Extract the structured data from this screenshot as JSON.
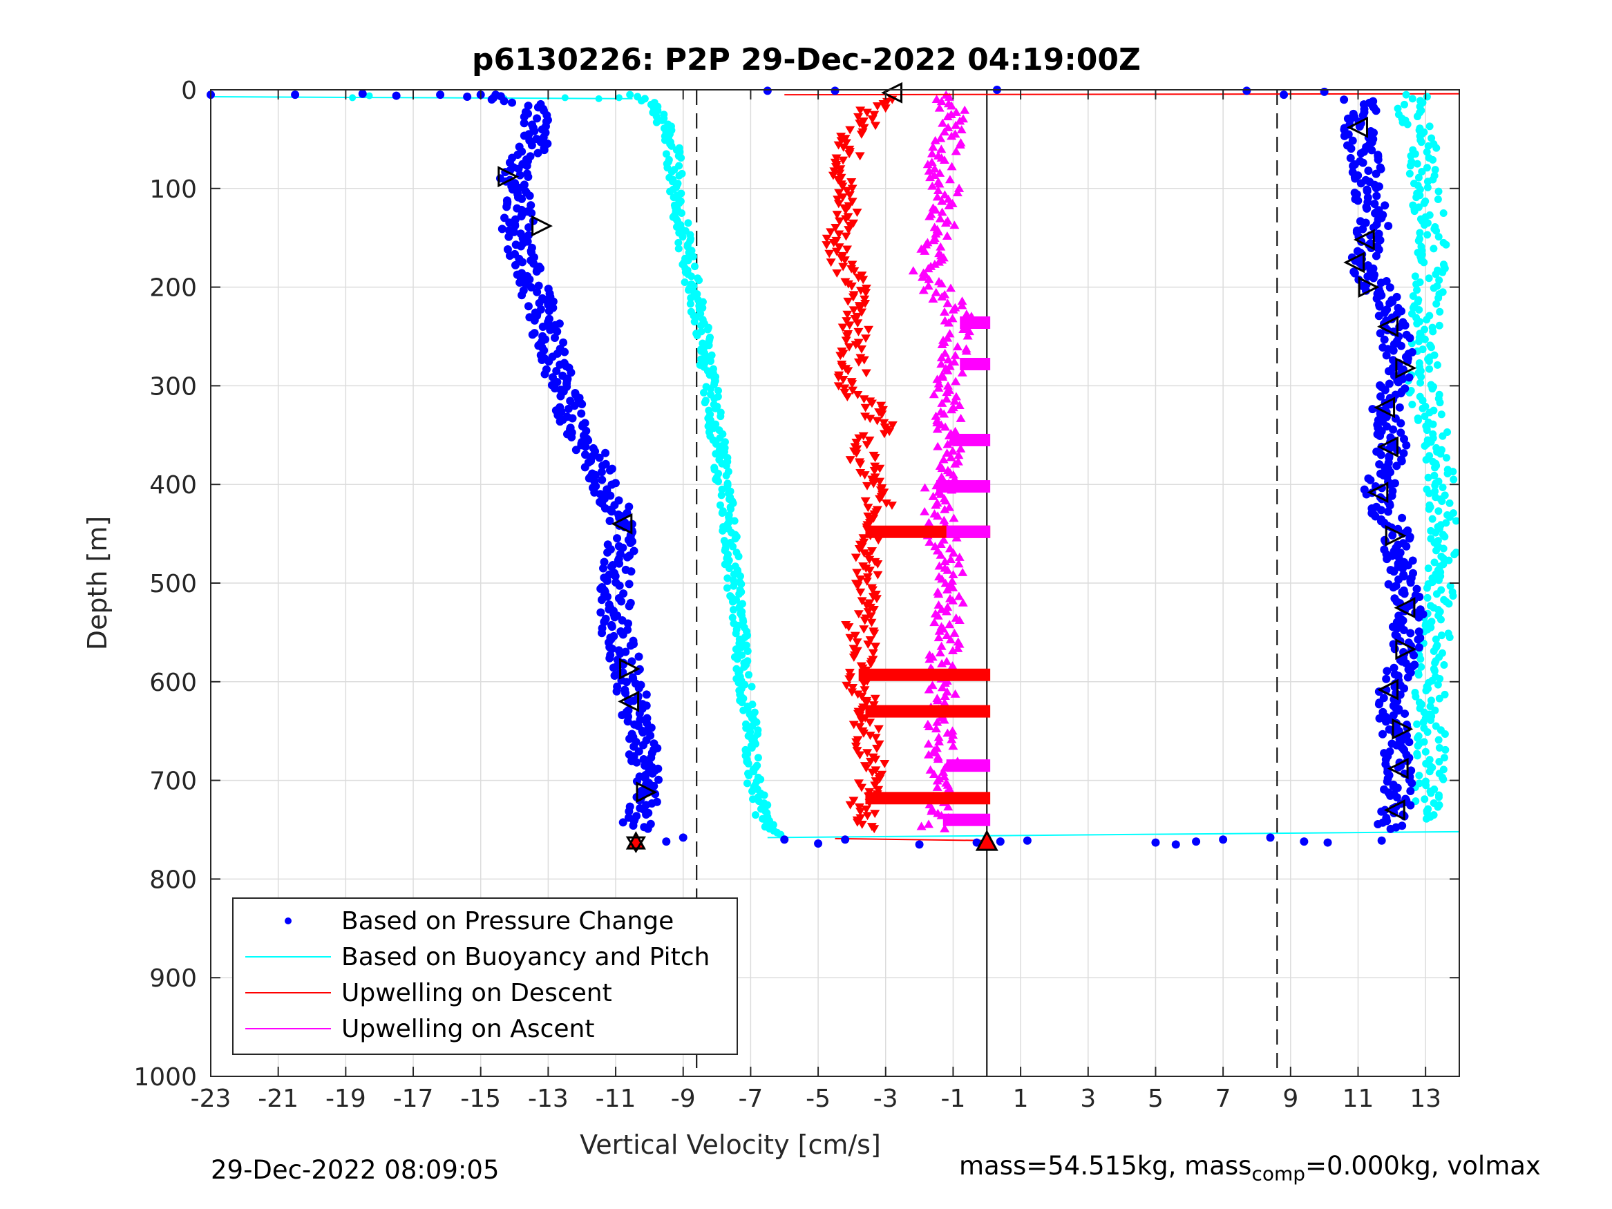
{
  "chart_data": {
    "type": "scatter",
    "title": "p6130226: P2P 29-Dec-2022 04:19:00Z",
    "xlabel": "Vertical Velocity [cm/s]",
    "ylabel": "Depth [m]",
    "xlim": [
      -23,
      14
    ],
    "ylim": [
      0,
      1000
    ],
    "y_reversed": true,
    "grid": true,
    "legend_position": "bottom-left",
    "x_ticks": [
      -23,
      -21,
      -19,
      -17,
      -15,
      -13,
      -11,
      -9,
      -7,
      -5,
      -3,
      -1,
      1,
      3,
      5,
      7,
      9,
      11,
      13
    ],
    "y_ticks": [
      0,
      100,
      200,
      300,
      400,
      500,
      600,
      700,
      800,
      900,
      1000
    ],
    "reference_lines": [
      {
        "x": -8.6,
        "style": "dashed"
      },
      {
        "x": 0,
        "style": "solid"
      },
      {
        "x": 8.6,
        "style": "dashed"
      }
    ],
    "colors": {
      "pressure": "#0000ff",
      "buoyancy": "#00ffff",
      "descent": "#ff0000",
      "ascent": "#ff00ff",
      "axis": "#262626",
      "grid": "#dcdcdc"
    },
    "legend": [
      {
        "label": "Based on Pressure Change",
        "marker": "dot",
        "color": "#0000ff"
      },
      {
        "label": "Based on Buoyancy and Pitch",
        "marker": "line",
        "color": "#00ffff"
      },
      {
        "label": "Upwelling on Descent",
        "marker": "line",
        "color": "#ff0000"
      },
      {
        "label": "Upwelling on Ascent",
        "marker": "line",
        "color": "#ff00ff"
      }
    ],
    "series": [
      {
        "name": "Based on Pressure Change",
        "key": "pressure_descent",
        "depth": [
          5,
          10,
          15,
          25,
          40,
          60,
          90,
          120,
          150,
          200,
          250,
          300,
          330,
          350,
          400,
          440,
          460,
          500,
          550,
          590,
          620,
          650,
          680,
          710,
          740,
          750
        ],
        "velocity": [
          -14.8,
          -14.2,
          -13.5,
          -13.3,
          -13.3,
          -13.5,
          -14.0,
          -13.8,
          -14.0,
          -13.4,
          -13.0,
          -12.6,
          -12.3,
          -12.0,
          -11.3,
          -10.8,
          -10.8,
          -11.0,
          -11.0,
          -10.6,
          -10.5,
          -10.2,
          -10.2,
          -10.1,
          -10.3,
          -10.5
        ]
      },
      {
        "name": "Based on Pressure Change",
        "key": "pressure_ascent",
        "depth": [
          10,
          20,
          40,
          60,
          80,
          100,
          130,
          160,
          180,
          200,
          240,
          280,
          320,
          360,
          410,
          450,
          500,
          530,
          570,
          610,
          650,
          690,
          730,
          750
        ],
        "velocity": [
          11.0,
          11.2,
          11.0,
          11.1,
          11.3,
          11.2,
          11.5,
          11.3,
          11.0,
          11.6,
          12.0,
          12.3,
          11.8,
          12.0,
          11.6,
          12.1,
          12.3,
          12.5,
          12.4,
          12.0,
          12.1,
          12.2,
          12.1,
          12.0
        ]
      },
      {
        "name": "Based on Pressure Change",
        "key": "pressure_surface",
        "depth": [
          5,
          5,
          4,
          6,
          5,
          7,
          5,
          1,
          1,
          0,
          1,
          5,
          2,
          762,
          758,
          760,
          764,
          760,
          765,
          763,
          762,
          761,
          763,
          762,
          760,
          758,
          762,
          763,
          765,
          761
        ],
        "velocity": [
          -23,
          -20.5,
          -18.5,
          -17.5,
          -16.2,
          -15.4,
          -15.0,
          -6.5,
          -4.5,
          0.3,
          7.7,
          8.8,
          10.0,
          -9.5,
          -9.0,
          -6.0,
          -5.0,
          -4.2,
          -2.0,
          -0.3,
          0.4,
          1.2,
          5.0,
          6.2,
          7.0,
          8.4,
          9.4,
          10.1,
          5.6,
          11.7
        ]
      },
      {
        "name": "Based on Buoyancy and Pitch",
        "key": "buoyancy_descent",
        "depth": [
          5,
          10,
          20,
          40,
          60,
          100,
          150,
          200,
          250,
          300,
          350,
          400,
          450,
          500,
          550,
          600,
          650,
          700,
          740,
          755
        ],
        "velocity": [
          -10.7,
          -10.1,
          -9.8,
          -9.5,
          -9.3,
          -9.2,
          -9.0,
          -8.7,
          -8.4,
          -8.2,
          -8.0,
          -7.8,
          -7.6,
          -7.5,
          -7.3,
          -7.2,
          -7.0,
          -6.9,
          -6.6,
          -6.3
        ]
      },
      {
        "name": "Based on Buoyancy and Pitch",
        "key": "buoyancy_ascent",
        "depth": [
          5,
          20,
          40,
          60,
          100,
          150,
          200,
          250,
          300,
          350,
          400,
          450,
          500,
          550,
          600,
          650,
          700,
          740
        ],
        "velocity": [
          12.8,
          12.6,
          12.7,
          12.9,
          13.0,
          13.2,
          13.1,
          13.0,
          12.9,
          13.3,
          13.4,
          13.5,
          13.4,
          13.3,
          13.1,
          13.2,
          13.1,
          13.0
        ]
      },
      {
        "name": "Upwelling on Descent",
        "key": "upwelling_descent",
        "depth": [
          10,
          30,
          50,
          80,
          100,
          130,
          150,
          180,
          200,
          230,
          260,
          280,
          300,
          320,
          340,
          360,
          390,
          420,
          450,
          480,
          510,
          540,
          570,
          600,
          630,
          660,
          690,
          720,
          750
        ],
        "velocity": [
          -3.2,
          -3.5,
          -4.0,
          -4.2,
          -4.3,
          -4.1,
          -4.4,
          -4.2,
          -3.9,
          -3.8,
          -4.0,
          -3.9,
          -4.1,
          -3.5,
          -3.0,
          -3.8,
          -3.5,
          -3.2,
          -3.3,
          -3.6,
          -3.5,
          -3.8,
          -3.6,
          -3.8,
          -3.5,
          -3.6,
          -3.3,
          -3.7,
          -3.5
        ]
      },
      {
        "name": "Upwelling on Ascent",
        "key": "upwelling_ascent",
        "depth": [
          5,
          20,
          40,
          60,
          80,
          100,
          130,
          150,
          180,
          200,
          230,
          260,
          290,
          320,
          350,
          380,
          410,
          440,
          470,
          500,
          530,
          560,
          590,
          620,
          650,
          680,
          710,
          740,
          750
        ],
        "velocity": [
          -1.2,
          -1.0,
          -0.9,
          -1.3,
          -1.5,
          -1.2,
          -1.3,
          -1.5,
          -1.8,
          -1.5,
          -0.8,
          -0.9,
          -1.0,
          -1.2,
          -1.0,
          -1.3,
          -1.5,
          -1.4,
          -1.2,
          -1.0,
          -1.1,
          -1.2,
          -1.5,
          -1.3,
          -1.4,
          -1.3,
          -1.2,
          -1.3,
          -1.6
        ]
      }
    ],
    "markers": [
      {
        "type": "triangle-left",
        "velocity": -2.8,
        "depth": 3
      },
      {
        "type": "triangle-right",
        "velocity": -14.2,
        "depth": 88
      },
      {
        "type": "triangle-right",
        "velocity": -13.2,
        "depth": 138
      },
      {
        "type": "triangle-left",
        "velocity": -10.8,
        "depth": 440
      },
      {
        "type": "triangle-right",
        "velocity": -10.6,
        "depth": 587
      },
      {
        "type": "triangle-left",
        "velocity": -10.6,
        "depth": 620
      },
      {
        "type": "triangle-right",
        "velocity": -10.1,
        "depth": 712
      },
      {
        "type": "star",
        "velocity": -10.4,
        "depth": 762
      },
      {
        "type": "triangle-left",
        "velocity": 11.0,
        "depth": 38
      },
      {
        "type": "triangle-left",
        "velocity": 11.2,
        "depth": 152
      },
      {
        "type": "triangle-left",
        "velocity": 10.9,
        "depth": 175
      },
      {
        "type": "triangle-right",
        "velocity": 11.3,
        "depth": 200
      },
      {
        "type": "triangle-left",
        "velocity": 11.9,
        "depth": 240
      },
      {
        "type": "triangle-right",
        "velocity": 12.4,
        "depth": 282
      },
      {
        "type": "triangle-left",
        "velocity": 11.8,
        "depth": 322
      },
      {
        "type": "triangle-left",
        "velocity": 11.9,
        "depth": 362
      },
      {
        "type": "triangle-left",
        "velocity": 11.6,
        "depth": 408
      },
      {
        "type": "triangle-right",
        "velocity": 12.1,
        "depth": 452
      },
      {
        "type": "triangle-left",
        "velocity": 12.4,
        "depth": 525
      },
      {
        "type": "triangle-right",
        "velocity": 12.4,
        "depth": 567
      },
      {
        "type": "triangle-left",
        "velocity": 11.9,
        "depth": 608
      },
      {
        "type": "triangle-right",
        "velocity": 12.3,
        "depth": 648
      },
      {
        "type": "triangle-left",
        "velocity": 12.2,
        "depth": 688
      },
      {
        "type": "triangle-left",
        "velocity": 12.1,
        "depth": 730
      },
      {
        "type": "triangle-up-red",
        "velocity": 0,
        "depth": 762
      }
    ]
  },
  "footer": {
    "timestamp": "29-Dec-2022 08:09:05",
    "mass_text": "mass=54.515kg, mass",
    "mass_sub": "comp",
    "mass_rest": "=0.000kg, volmax"
  }
}
